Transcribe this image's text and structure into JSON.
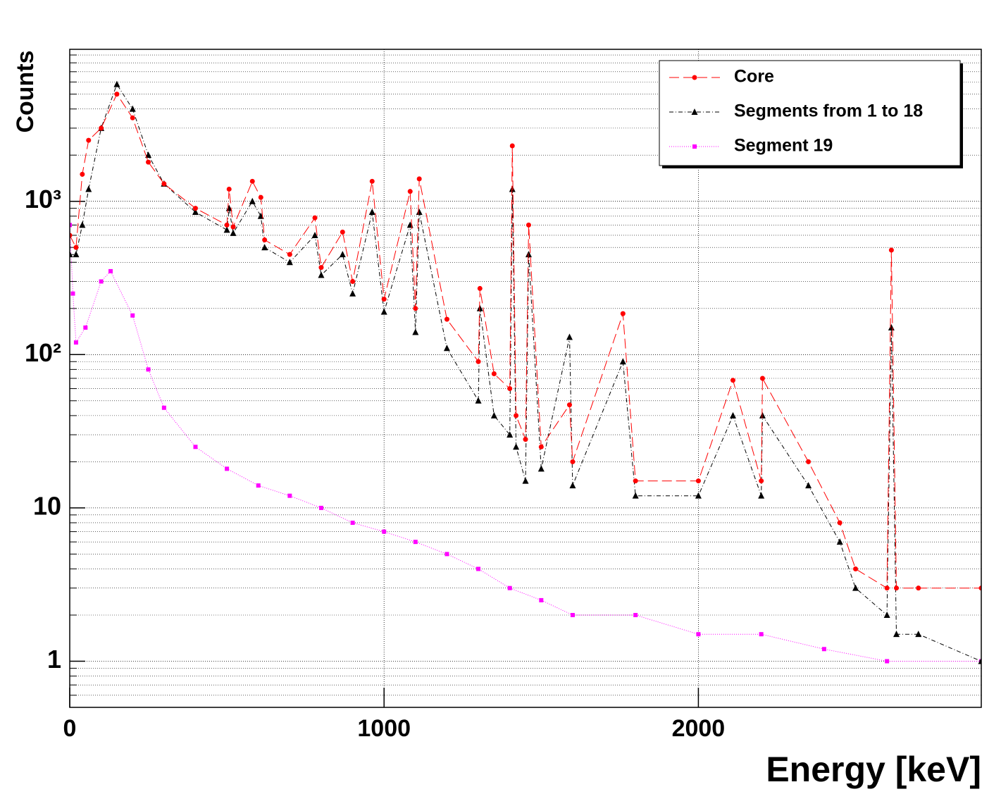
{
  "chart_data": {
    "type": "line",
    "x_label": "Energy [keV]",
    "y_label": "Counts",
    "xlim": [
      0,
      2900
    ],
    "ylim": [
      0.5,
      9800
    ],
    "log_y": true,
    "grid": true,
    "legend": "top-right",
    "xticks": [
      0,
      1000,
      2000
    ],
    "yticks": [
      1,
      10,
      {
        "value": 100,
        "label": "10²"
      },
      {
        "value": 1000,
        "label": "10³"
      }
    ],
    "yminorticks": [
      0.6,
      0.7,
      0.8,
      0.9,
      2,
      3,
      4,
      5,
      6,
      7,
      8,
      9,
      20,
      30,
      40,
      50,
      60,
      70,
      80,
      90,
      200,
      300,
      400,
      500,
      600,
      700,
      800,
      900,
      2000,
      3000,
      4000,
      5000,
      6000,
      7000,
      8000,
      9000
    ],
    "series": [
      {
        "name": "Core",
        "color": "#ff0000",
        "marker": "circle",
        "line_style": "dashed",
        "x": [
          0,
          20,
          40,
          60,
          100,
          150,
          200,
          250,
          300,
          400,
          500,
          507,
          520,
          581,
          608,
          620,
          700,
          780,
          800,
          868,
          900,
          962,
          1000,
          1083,
          1100,
          1112,
          1200,
          1300,
          1305,
          1350,
          1400,
          1408,
          1420,
          1450,
          1460,
          1500,
          1590,
          1600,
          1760,
          1800,
          2000,
          2110,
          2200,
          2204,
          2350,
          2450,
          2500,
          2600,
          2614,
          2630,
          2700,
          2900
        ],
        "values": [
          600,
          500,
          1500,
          2500,
          3000,
          5000,
          3500,
          1800,
          1300,
          900,
          700,
          1200,
          680,
          1350,
          1060,
          560,
          450,
          780,
          370,
          630,
          300,
          1350,
          230,
          1160,
          200,
          1400,
          170,
          90,
          270,
          75,
          60,
          2300,
          40,
          28,
          700,
          25,
          47,
          20,
          185,
          15,
          15,
          68,
          15,
          70,
          20,
          8,
          4,
          3,
          480,
          3,
          3,
          3
        ]
      },
      {
        "name": "Segments from 1 to 18",
        "color": "#000000",
        "marker": "triangle",
        "line_style": "dashdot",
        "x": [
          0,
          20,
          40,
          60,
          100,
          150,
          200,
          250,
          300,
          400,
          500,
          507,
          520,
          581,
          608,
          620,
          700,
          780,
          800,
          868,
          900,
          962,
          1000,
          1083,
          1100,
          1112,
          1200,
          1300,
          1305,
          1350,
          1400,
          1408,
          1420,
          1450,
          1460,
          1500,
          1590,
          1600,
          1760,
          1800,
          2000,
          2110,
          2200,
          2204,
          2350,
          2450,
          2500,
          2600,
          2614,
          2630,
          2700,
          2900
        ],
        "values": [
          450,
          450,
          700,
          1200,
          3000,
          5800,
          4000,
          2000,
          1300,
          850,
          650,
          900,
          620,
          1000,
          800,
          500,
          400,
          600,
          330,
          450,
          250,
          850,
          190,
          700,
          140,
          850,
          110,
          50,
          200,
          40,
          30,
          1200,
          25,
          15,
          450,
          18,
          130,
          14,
          90,
          12,
          12,
          40,
          12,
          40,
          14,
          6,
          3,
          2,
          150,
          1.5,
          1.5,
          1
        ]
      },
      {
        "name": "Segment 19",
        "color": "#ff00ff",
        "marker": "square",
        "line_style": "dotted",
        "x": [
          0,
          10,
          20,
          50,
          100,
          130,
          200,
          250,
          300,
          400,
          500,
          600,
          700,
          800,
          900,
          1000,
          1100,
          1200,
          1300,
          1400,
          1500,
          1600,
          1800,
          2000,
          2200,
          2400,
          2600,
          2900
        ],
        "values": [
          700,
          250,
          120,
          150,
          300,
          350,
          180,
          80,
          45,
          25,
          18,
          14,
          12,
          10,
          8,
          7,
          6,
          5,
          4,
          3,
          2.5,
          2,
          2,
          1.5,
          1.5,
          1.2,
          1,
          1
        ]
      }
    ]
  }
}
